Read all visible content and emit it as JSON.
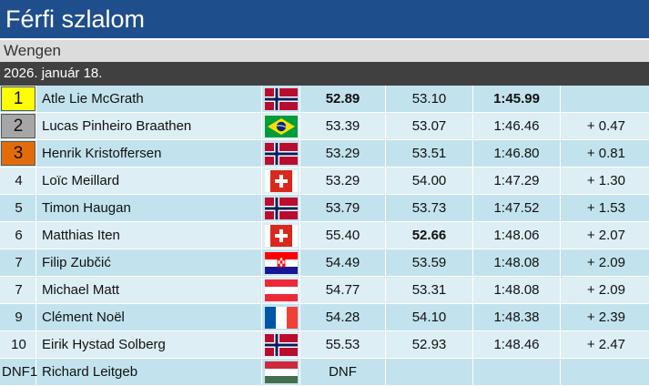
{
  "title": "Férfi szlalom",
  "venue": "Wengen",
  "date": "2026. január 18.",
  "colors": {
    "title_bg": "#1f4e8c",
    "gold": "#ffff00",
    "silver": "#a6a6a6",
    "bronze": "#e36c09",
    "row_odd": "#c2e3ed",
    "row_even": "#ddeef4"
  },
  "rows": [
    {
      "rank": "1",
      "medal": "gold",
      "name": "Atle Lie McGrath",
      "flag": "norway-flag",
      "run1": "52.89",
      "run1_best": true,
      "run2": "53.10",
      "run2_best": false,
      "total": "1:45.99",
      "total_best": true,
      "diff": ""
    },
    {
      "rank": "2",
      "medal": "silver",
      "name": "Lucas Pinheiro Braathen",
      "flag": "brazil-flag",
      "run1": "53.39",
      "run1_best": false,
      "run2": "53.07",
      "run2_best": false,
      "total": "1:46.46",
      "total_best": false,
      "diff": "+ 0.47"
    },
    {
      "rank": "3",
      "medal": "bronze",
      "name": "Henrik Kristoffersen",
      "flag": "norway-flag",
      "run1": "53.29",
      "run1_best": false,
      "run2": "53.51",
      "run2_best": false,
      "total": "1:46.80",
      "total_best": false,
      "diff": "+ 0.81"
    },
    {
      "rank": "4",
      "medal": "",
      "name": "Loïc Meillard",
      "flag": "switzerland-flag",
      "run1": "53.29",
      "run1_best": false,
      "run2": "54.00",
      "run2_best": false,
      "total": "1:47.29",
      "total_best": false,
      "diff": "+ 1.30"
    },
    {
      "rank": "5",
      "medal": "",
      "name": "Timon Haugan",
      "flag": "norway-flag",
      "run1": "53.79",
      "run1_best": false,
      "run2": "53.73",
      "run2_best": false,
      "total": "1:47.52",
      "total_best": false,
      "diff": "+ 1.53"
    },
    {
      "rank": "6",
      "medal": "",
      "name": "Matthias Iten",
      "flag": "switzerland-flag",
      "run1": "55.40",
      "run1_best": false,
      "run2": "52.66",
      "run2_best": true,
      "total": "1:48.06",
      "total_best": false,
      "diff": "+ 2.07"
    },
    {
      "rank": "7",
      "medal": "",
      "name": "Filip Zubčić",
      "flag": "croatia-flag",
      "run1": "54.49",
      "run1_best": false,
      "run2": "53.59",
      "run2_best": false,
      "total": "1:48.08",
      "total_best": false,
      "diff": "+ 2.09"
    },
    {
      "rank": "7",
      "medal": "",
      "name": "Michael Matt",
      "flag": "austria-flag",
      "run1": "54.77",
      "run1_best": false,
      "run2": "53.31",
      "run2_best": false,
      "total": "1:48.08",
      "total_best": false,
      "diff": "+ 2.09"
    },
    {
      "rank": "9",
      "medal": "",
      "name": "Clément Noël",
      "flag": "france-flag",
      "run1": "54.28",
      "run1_best": false,
      "run2": "54.10",
      "run2_best": false,
      "total": "1:48.38",
      "total_best": false,
      "diff": "+ 2.39"
    },
    {
      "rank": "10",
      "medal": "",
      "name": "Eirik Hystad Solberg",
      "flag": "norway-flag",
      "run1": "55.53",
      "run1_best": false,
      "run2": "52.93",
      "run2_best": false,
      "total": "1:48.46",
      "total_best": false,
      "diff": "+ 2.47"
    },
    {
      "rank": "DNF1",
      "medal": "",
      "name": "Richard Leitgeb",
      "flag": "hungary-flag",
      "run1": "DNF",
      "run1_best": false,
      "run2": "",
      "run2_best": false,
      "total": "",
      "total_best": false,
      "diff": ""
    }
  ]
}
